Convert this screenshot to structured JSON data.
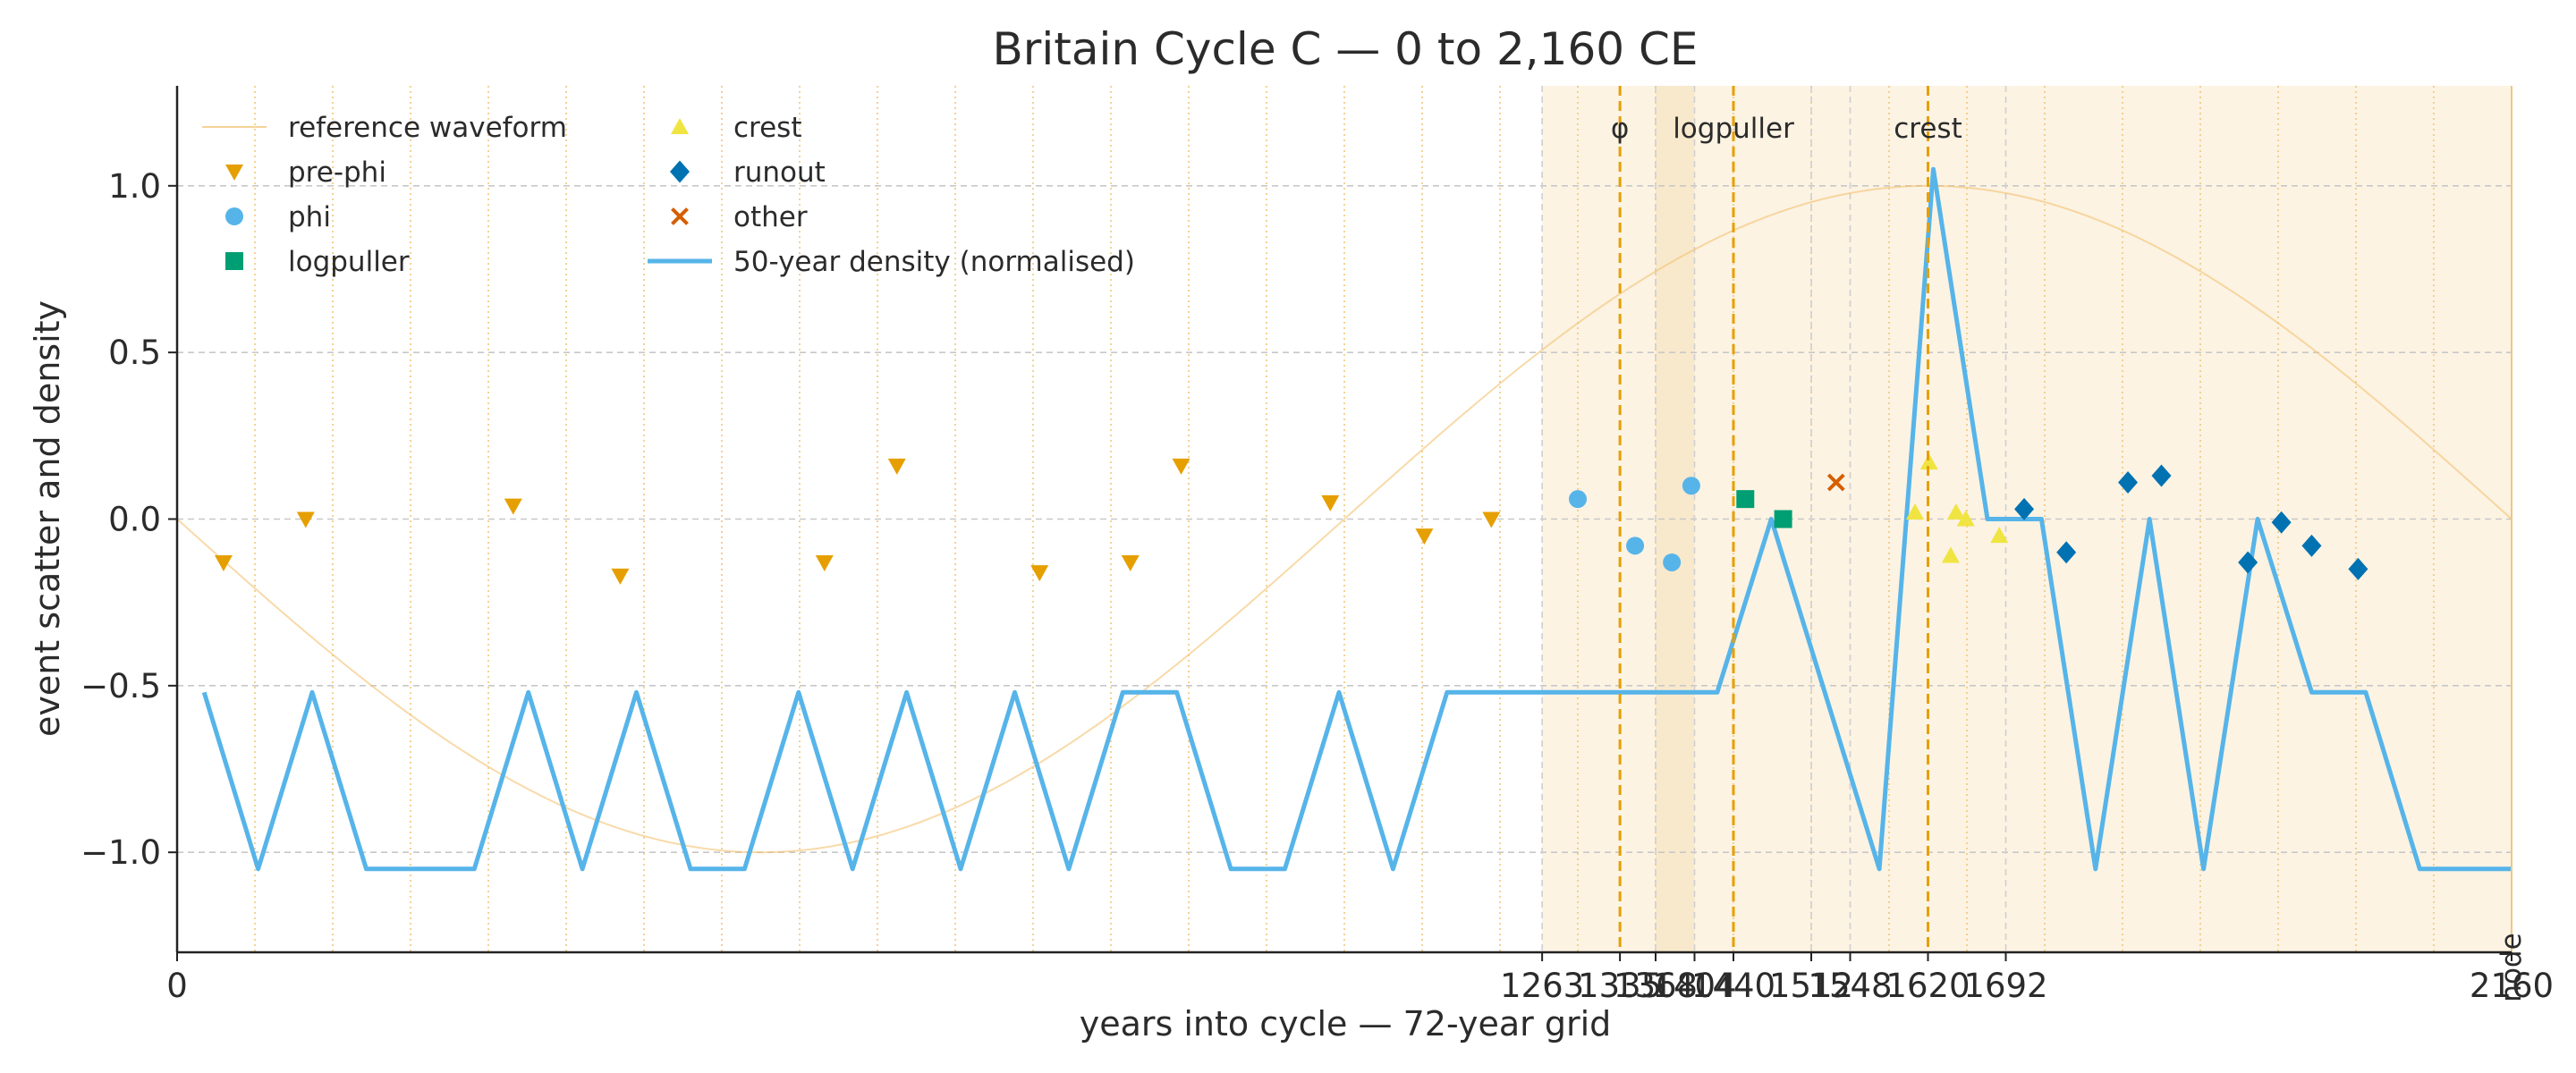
{
  "chart_data": {
    "type": "scatter",
    "title": "Britain Cycle C — 0 to 2,160 CE",
    "xlabel": "years into cycle — 72-year grid",
    "ylabel": "event scatter and density",
    "xlim": [
      0,
      2160
    ],
    "ylim": [
      -1.3,
      1.3
    ],
    "x_ticks": [
      0,
      1263,
      1335,
      1368,
      1404,
      1440,
      1512,
      1548,
      1620,
      1692,
      2160
    ],
    "x_tick_labels": [
      "0",
      "1263",
      "1335",
      "1368",
      "1404",
      "1440",
      "1512",
      "1548",
      "1620",
      "1692",
      "2160"
    ],
    "y_ticks": [
      -1.0,
      -0.5,
      0.0,
      0.5,
      1.0
    ],
    "y_tick_labels": [
      "−1.0",
      "−0.5",
      "0.0",
      "0.5",
      "1.0"
    ],
    "grid": true,
    "grid_lines_x": [
      72,
      144,
      216,
      288,
      360,
      432,
      504,
      576,
      648,
      720,
      792,
      864,
      936,
      1008,
      1080,
      1152,
      1224,
      1296,
      1368,
      1440,
      1512,
      1584,
      1656,
      1728,
      1800,
      1872,
      1944,
      2016,
      2088,
      2160
    ],
    "shaded_bands": [
      {
        "x": [
          1263,
          2160
        ],
        "style": "light"
      },
      {
        "x": [
          1368,
          1404
        ],
        "style": "medium"
      }
    ],
    "boundary_lines": [
      1263,
      1368,
      1404,
      1512,
      1548,
      1692
    ],
    "phase_markers": [
      {
        "x": 1335,
        "label": "φ"
      },
      {
        "x": 1440,
        "label": "logpuller"
      },
      {
        "x": 1620,
        "label": "crest"
      }
    ],
    "end_marker": {
      "x": 2160,
      "label": "node"
    },
    "legend_position": "top-left",
    "series": [
      {
        "name": "reference waveform",
        "kind": "line",
        "color": "#f3c26f",
        "function": "cosine",
        "period": 2160,
        "trough_x": 540,
        "crest_x": 1620,
        "amplitude": 1.0
      },
      {
        "name": "pre-phi",
        "kind": "scatter",
        "marker": "triangle-down",
        "color": "#e69f00",
        "points": [
          [
            43,
            -0.13
          ],
          [
            119,
            0.0
          ],
          [
            311,
            0.04
          ],
          [
            410,
            -0.17
          ],
          [
            599,
            -0.13
          ],
          [
            666,
            0.16
          ],
          [
            798,
            -0.16
          ],
          [
            882,
            -0.13
          ],
          [
            929,
            0.16
          ],
          [
            1067,
            0.05
          ],
          [
            1154,
            -0.05
          ],
          [
            1216,
            0.0
          ]
        ]
      },
      {
        "name": "phi",
        "kind": "scatter",
        "marker": "circle",
        "color": "#56b4e9",
        "points": [
          [
            1296,
            0.06
          ],
          [
            1349,
            -0.08
          ],
          [
            1383,
            -0.13
          ],
          [
            1401,
            0.1
          ]
        ]
      },
      {
        "name": "logpuller",
        "kind": "scatter",
        "marker": "square",
        "color": "#009e73",
        "points": [
          [
            1451,
            0.06
          ],
          [
            1486,
            0.0
          ]
        ]
      },
      {
        "name": "crest",
        "kind": "scatter",
        "marker": "triangle-up",
        "color": "#f0e442",
        "points": [
          [
            1608,
            0.02
          ],
          [
            1621,
            0.17
          ],
          [
            1641,
            -0.11
          ],
          [
            1646,
            0.02
          ],
          [
            1655,
            0.0
          ],
          [
            1686,
            -0.05
          ]
        ]
      },
      {
        "name": "runout",
        "kind": "scatter",
        "marker": "diamond",
        "color": "#0072b2",
        "points": [
          [
            1709,
            0.03
          ],
          [
            1748,
            -0.1
          ],
          [
            1805,
            0.11
          ],
          [
            1836,
            0.13
          ],
          [
            1916,
            -0.13
          ],
          [
            1947,
            -0.01
          ],
          [
            1975,
            -0.08
          ],
          [
            2018,
            -0.15
          ]
        ]
      },
      {
        "name": "other",
        "kind": "scatter",
        "marker": "x",
        "color": "#d55e00",
        "points": [
          [
            1535,
            0.11
          ]
        ]
      },
      {
        "name": "50-year density (normalised)",
        "kind": "line",
        "color": "#56b4e9",
        "points": [
          [
            25,
            -0.52
          ],
          [
            75,
            -1.05
          ],
          [
            125,
            -0.52
          ],
          [
            175,
            -1.05
          ],
          [
            275,
            -1.05
          ],
          [
            325,
            -0.52
          ],
          [
            375,
            -1.05
          ],
          [
            425,
            -0.52
          ],
          [
            475,
            -1.05
          ],
          [
            525,
            -1.05
          ],
          [
            575,
            -0.52
          ],
          [
            625,
            -1.05
          ],
          [
            675,
            -0.52
          ],
          [
            725,
            -1.05
          ],
          [
            775,
            -0.52
          ],
          [
            825,
            -1.05
          ],
          [
            875,
            -0.52
          ],
          [
            925,
            -0.52
          ],
          [
            975,
            -1.05
          ],
          [
            1025,
            -1.05
          ],
          [
            1075,
            -0.52
          ],
          [
            1125,
            -1.05
          ],
          [
            1175,
            -0.52
          ],
          [
            1425,
            -0.52
          ],
          [
            1475,
            0.0
          ],
          [
            1575,
            -1.05
          ],
          [
            1625,
            1.05
          ],
          [
            1675,
            0.0
          ],
          [
            1725,
            0.0
          ],
          [
            1775,
            -1.05
          ],
          [
            1825,
            0.0
          ],
          [
            1875,
            -1.05
          ],
          [
            1925,
            0.0
          ],
          [
            1975,
            -0.52
          ],
          [
            2025,
            -0.52
          ],
          [
            2075,
            -1.05
          ],
          [
            2160,
            -1.05
          ]
        ]
      }
    ]
  }
}
